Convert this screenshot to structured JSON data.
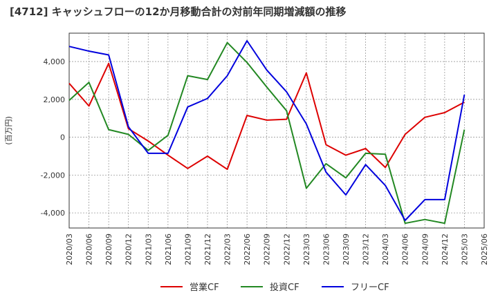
{
  "chart_data": {
    "type": "line",
    "title": "[4712]  キャッシュフローの12か月移動合計の対前年同期増減額の推移",
    "ylabel": "(百万円)",
    "xlabel": "",
    "ylim": [
      -4800,
      5500
    ],
    "yticks": [
      -4000,
      -2000,
      0,
      2000,
      4000
    ],
    "ytick_labels": [
      "-4,000",
      "-2,000",
      "0",
      "2,000",
      "4,000"
    ],
    "x": [
      "2020/03",
      "2020/06",
      "2020/09",
      "2020/12",
      "2021/03",
      "2021/06",
      "2021/09",
      "2021/12",
      "2022/03",
      "2022/06",
      "2022/09",
      "2022/12",
      "2023/03",
      "2023/06",
      "2023/09",
      "2023/12",
      "2024/03",
      "2024/06",
      "2024/09",
      "2024/12",
      "2025/03",
      "2025/06"
    ],
    "grid": true,
    "legend_position": "bottom",
    "series": [
      {
        "name": "営業CF",
        "color": "#dd0000",
        "values": [
          2850,
          1650,
          3900,
          450,
          -200,
          -950,
          -1650,
          -1000,
          -1700,
          1150,
          900,
          950,
          3400,
          -400,
          -950,
          -600,
          -1600,
          150,
          1050,
          1300,
          1850,
          null
        ]
      },
      {
        "name": "投資CF",
        "color": "#228822",
        "values": [
          1950,
          2900,
          400,
          150,
          -700,
          100,
          3250,
          3050,
          5000,
          3950,
          2650,
          1400,
          -2700,
          -1400,
          -2150,
          -850,
          -900,
          -4550,
          -4350,
          -4550,
          400,
          null
        ]
      },
      {
        "name": "フリーCF",
        "color": "#0000dd",
        "values": [
          4800,
          4550,
          4350,
          550,
          -850,
          -850,
          1600,
          2050,
          3250,
          5100,
          3550,
          2400,
          700,
          -1850,
          -3050,
          -1450,
          -2550,
          -4400,
          -3300,
          -3300,
          2250,
          null
        ]
      }
    ]
  }
}
